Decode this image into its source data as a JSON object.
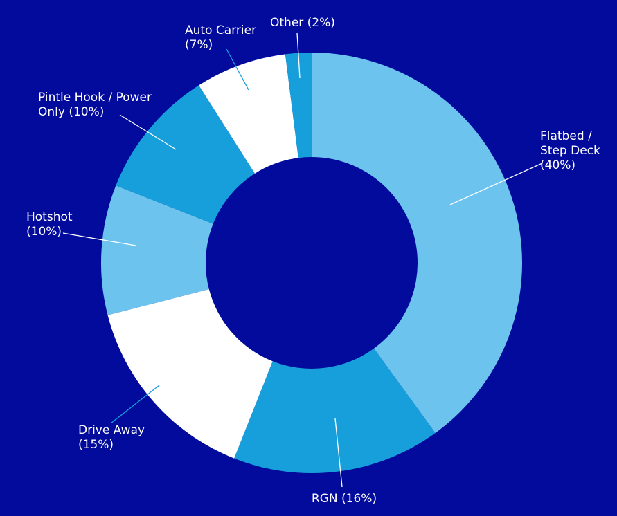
{
  "chart_data": {
    "type": "pie",
    "donut": true,
    "values": [
      40,
      16,
      15,
      10,
      10,
      7,
      2
    ],
    "slices": [
      {
        "label_lines": [
          "Flatbed /",
          "Step Deck",
          "(40%)"
        ],
        "value": 40,
        "color": "#6cc4ee"
      },
      {
        "label_lines": [
          "RGN (16%)"
        ],
        "value": 16,
        "color": "#179fdb"
      },
      {
        "label_lines": [
          "Drive Away",
          "(15%)"
        ],
        "value": 15,
        "color": "#ffffff"
      },
      {
        "label_lines": [
          "Hotshot",
          "(10%)"
        ],
        "value": 10,
        "color": "#6cc4ee"
      },
      {
        "label_lines": [
          "Pintle Hook / Power",
          "Only (10%)"
        ],
        "value": 10,
        "color": "#179fdb"
      },
      {
        "label_lines": [
          "Auto Carrier",
          "(7%)"
        ],
        "value": 7,
        "color": "#ffffff"
      },
      {
        "label_lines": [
          "Other (2%)"
        ],
        "value": 2,
        "color": "#179fdb"
      }
    ],
    "background_color": "#020b9b",
    "hole_color": "#020b9b",
    "label_color": "#ffffff"
  }
}
